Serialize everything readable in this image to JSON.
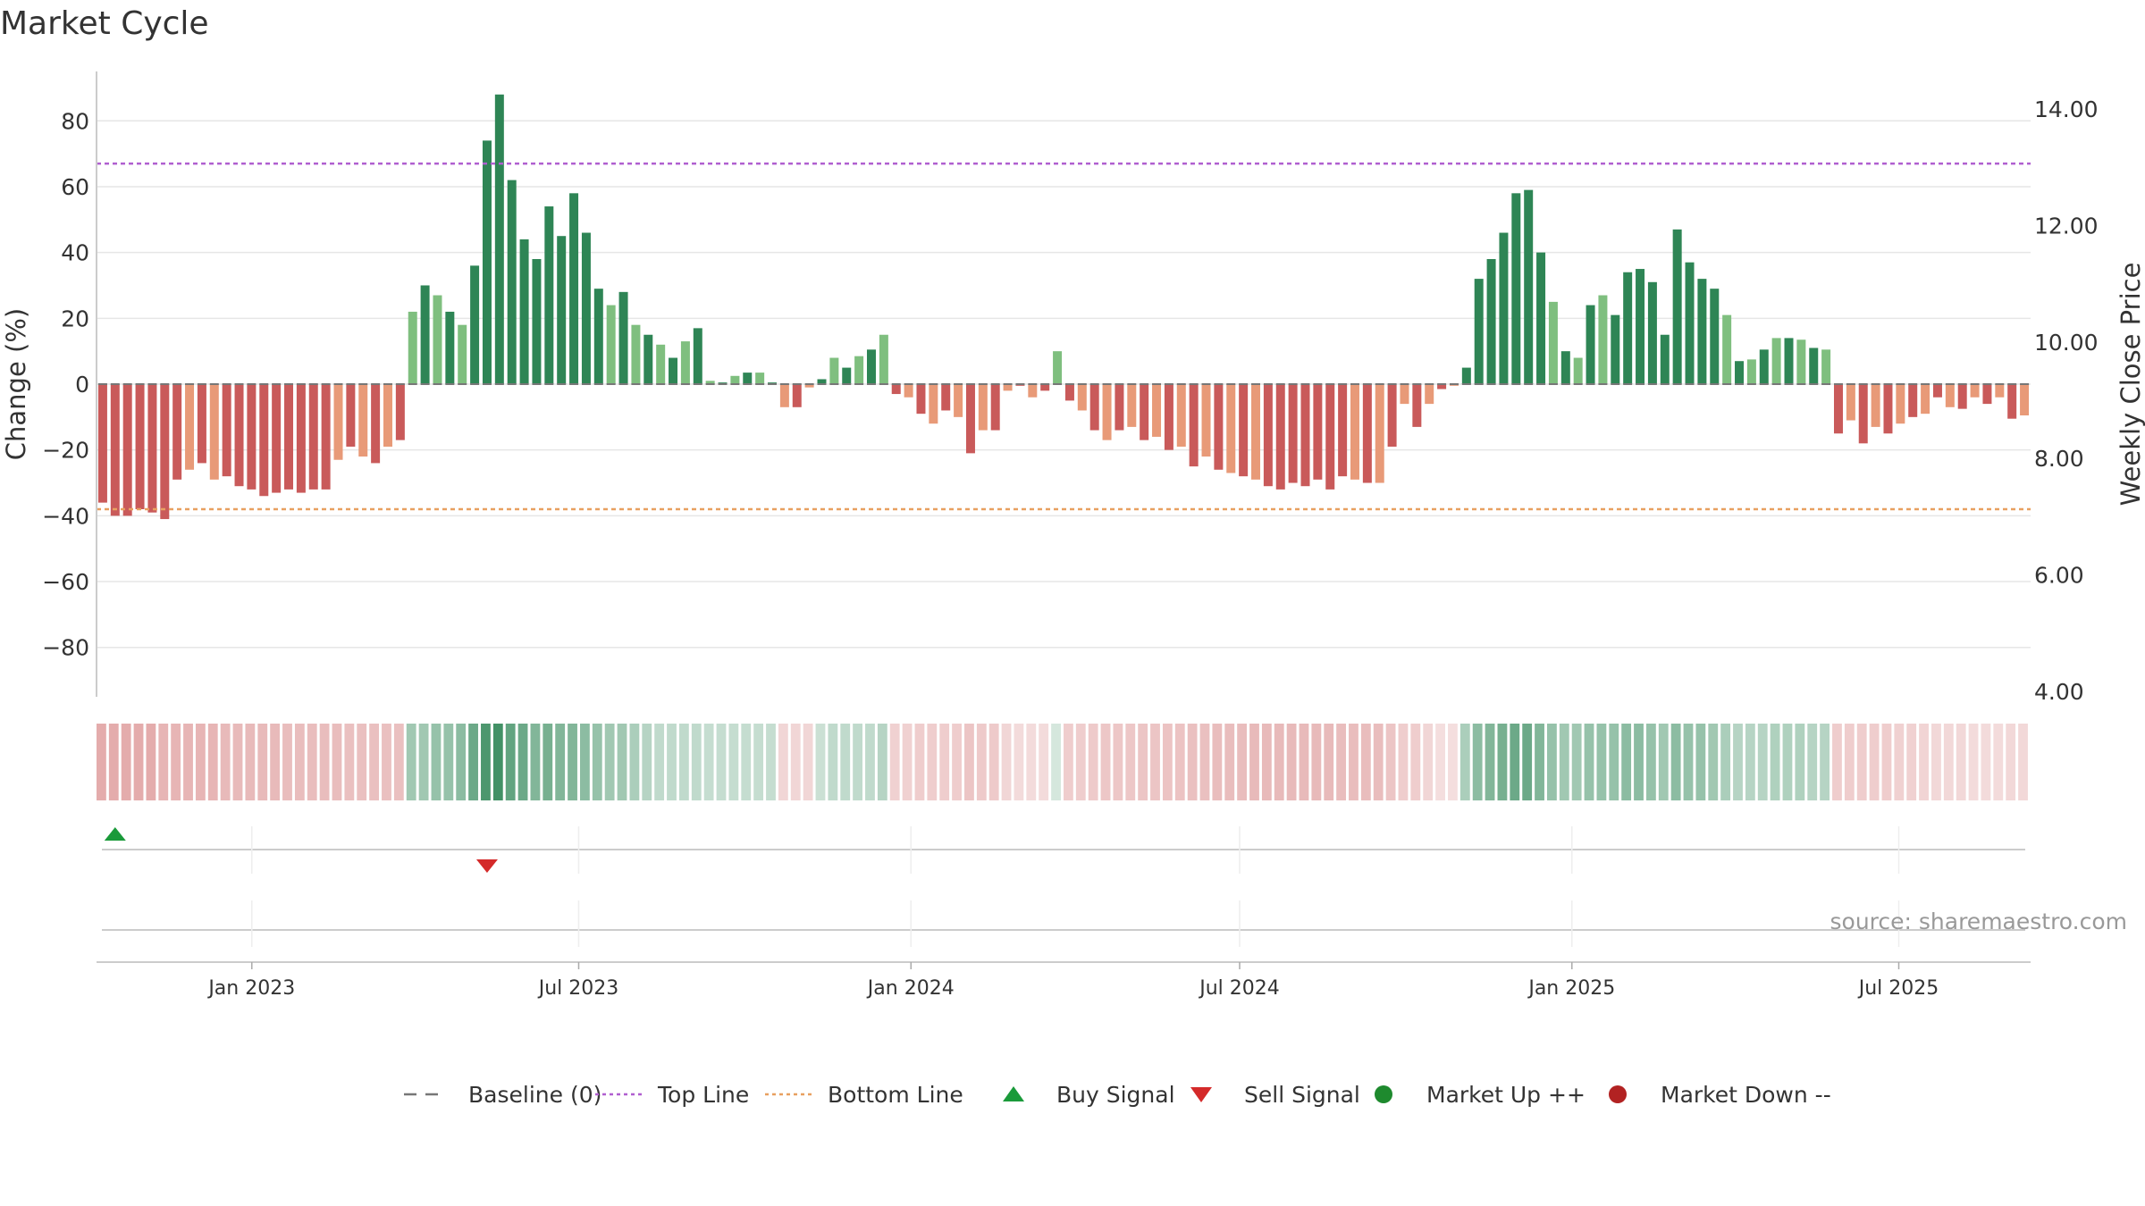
{
  "title": "Market Cycle",
  "source": "source: sharemaestro.com",
  "colors": {
    "up_strong": "#2e8555",
    "up_weak": "#7fbf7f",
    "down_strong": "#c95a5a",
    "down_weak": "#e89a78",
    "top_line": "#b05fd0",
    "bottom_line": "#e8a060",
    "baseline": "#777777",
    "buy": "#1a9a3a",
    "sell": "#d42a2a",
    "market_up": "#1e8a2e",
    "market_down": "#b22222"
  },
  "legend": [
    {
      "label": "Baseline (0)",
      "marker": "dash",
      "color": "#777777"
    },
    {
      "label": "Top Line",
      "marker": "dotted",
      "color": "#b05fd0"
    },
    {
      "label": "Bottom Line",
      "marker": "dotted",
      "color": "#e8a060"
    },
    {
      "label": "Buy Signal",
      "marker": "triangle-up",
      "color": "#1a9a3a"
    },
    {
      "label": "Sell Signal",
      "marker": "triangle-down",
      "color": "#d42a2a"
    },
    {
      "label": "Market Up ++",
      "marker": "circle",
      "color": "#1e8a2e"
    },
    {
      "label": "Market Down --",
      "marker": "circle",
      "color": "#b22222"
    }
  ],
  "chart_data": {
    "type": "bar",
    "title": "Market Cycle",
    "ylabel": "Change (%)",
    "y2label": "Weekly Close Price",
    "ylim": [
      -95,
      95
    ],
    "yticks": [
      80,
      60,
      40,
      20,
      0,
      -20,
      -40,
      -60,
      -80
    ],
    "ytick_labels": [
      "80",
      "60",
      "40",
      "20",
      "0",
      "−20",
      "−40",
      "−60",
      "−80"
    ],
    "y2lim": [
      4.0,
      14.0
    ],
    "y2ticks": [
      "14.00",
      "12.00",
      "10.00",
      "8.00",
      "6.00",
      "4.00"
    ],
    "x_start": "2022-10-07",
    "x_end": "2025-09-12",
    "xticks": [
      {
        "date": "2023-01-01",
        "label": "Jan 2023"
      },
      {
        "date": "2023-07-01",
        "label": "Jul 2023"
      },
      {
        "date": "2024-01-01",
        "label": "Jan 2024"
      },
      {
        "date": "2024-07-01",
        "label": "Jul 2024"
      },
      {
        "date": "2025-01-01",
        "label": "Jan 2025"
      },
      {
        "date": "2025-07-01",
        "label": "Jul 2025"
      }
    ],
    "top_line": 67,
    "bottom_line": -38,
    "values": [
      -36,
      -40,
      -40,
      -38,
      -39,
      -41,
      -29,
      -26,
      -24,
      -29,
      -28,
      -31,
      -32,
      -34,
      -33,
      -32,
      -33,
      -32,
      -32,
      -23,
      -19,
      -22,
      -24,
      -19,
      -17,
      22,
      30,
      27,
      22,
      18,
      36,
      74,
      88,
      62,
      44,
      38,
      54,
      45,
      58,
      46,
      29,
      24,
      28,
      18,
      15,
      12,
      8,
      13,
      17,
      1,
      0.5,
      2.5,
      3.5,
      3.5,
      0.5,
      -7,
      -7,
      -1,
      1.5,
      8,
      5,
      8.5,
      10.5,
      15,
      -3,
      -4,
      -9,
      -12,
      -8,
      -10,
      -21,
      -14,
      -14,
      -2,
      -0.5,
      -4,
      -2,
      10,
      -5,
      -8,
      -14,
      -17,
      -14,
      -13,
      -17,
      -16,
      -20,
      -19,
      -25,
      -22,
      -26,
      -27,
      -28,
      -29,
      -31,
      -32,
      -30,
      -31,
      -29,
      -32,
      -28,
      -29,
      -30,
      -30,
      -19,
      -6,
      -13,
      -6,
      -1.5,
      -0.5,
      5,
      32,
      38,
      46,
      58,
      59,
      40,
      25,
      10,
      8,
      24,
      27,
      21,
      34,
      35,
      31,
      15,
      47,
      37,
      32,
      29,
      21,
      7,
      7.5,
      10.5,
      14,
      14,
      13.5,
      11,
      10.5,
      -15,
      -11,
      -18,
      -13,
      -15,
      -12,
      -10,
      -9,
      -4,
      -7,
      -7.5,
      -4,
      -6,
      -4,
      -10.5,
      -9.5
    ],
    "heatmap_intensity": [
      0.5,
      0.5,
      0.5,
      0.5,
      0.5,
      0.45,
      0.45,
      0.45,
      0.45,
      0.45,
      0.42,
      0.42,
      0.42,
      0.42,
      0.42,
      0.4,
      0.4,
      0.4,
      0.4,
      0.4,
      0.38,
      0.38,
      0.38,
      0.38,
      0.38,
      0.45,
      0.45,
      0.5,
      0.5,
      0.55,
      0.7,
      0.85,
      0.9,
      0.75,
      0.7,
      0.6,
      0.65,
      0.6,
      0.6,
      0.55,
      0.5,
      0.45,
      0.45,
      0.4,
      0.35,
      0.3,
      0.3,
      0.3,
      0.3,
      0.28,
      0.28,
      0.28,
      0.28,
      0.28,
      0.28,
      0.25,
      0.25,
      0.25,
      0.25,
      0.3,
      0.3,
      0.3,
      0.3,
      0.35,
      0.28,
      0.28,
      0.3,
      0.3,
      0.3,
      0.3,
      0.35,
      0.32,
      0.32,
      0.25,
      0.22,
      0.22,
      0.22,
      0.2,
      0.3,
      0.3,
      0.32,
      0.34,
      0.34,
      0.34,
      0.35,
      0.35,
      0.36,
      0.36,
      0.38,
      0.38,
      0.4,
      0.4,
      0.4,
      0.42,
      0.42,
      0.42,
      0.42,
      0.42,
      0.42,
      0.42,
      0.4,
      0.4,
      0.4,
      0.4,
      0.35,
      0.3,
      0.3,
      0.25,
      0.2,
      0.2,
      0.4,
      0.55,
      0.6,
      0.65,
      0.7,
      0.7,
      0.6,
      0.5,
      0.45,
      0.45,
      0.5,
      0.5,
      0.5,
      0.55,
      0.55,
      0.5,
      0.45,
      0.55,
      0.5,
      0.5,
      0.45,
      0.4,
      0.35,
      0.35,
      0.35,
      0.38,
      0.38,
      0.38,
      0.35,
      0.35,
      0.3,
      0.3,
      0.3,
      0.3,
      0.3,
      0.28,
      0.28,
      0.26,
      0.24,
      0.24,
      0.24,
      0.22,
      0.22,
      0.22,
      0.24,
      0.24
    ],
    "buy_signals": [
      1
    ],
    "sell_signals": [
      31
    ]
  }
}
